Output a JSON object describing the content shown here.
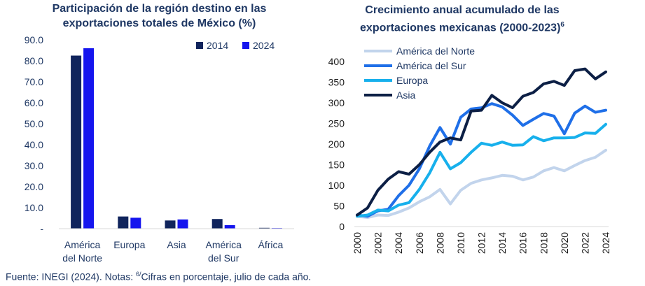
{
  "footer": {
    "prefix": "Fuente: INEGI (2024). Notas: ",
    "sup": "6/",
    "suffix": "Cifras en porcentaje, julio de cada año."
  },
  "colors": {
    "title": "#1f3864",
    "axis_text": "#1f3864",
    "s2014": "#10245c",
    "s2024": "#1515ee",
    "norte": "#c2d4ec",
    "sur": "#1f6fe8",
    "europa": "#17b0ec",
    "asia": "#0c1f45"
  },
  "chart_data": [
    {
      "type": "bar",
      "title_line1": "Participación de la región destino en las",
      "title_line2": "exportaciones totales de México (%)",
      "categories": [
        [
          "América",
          "del Norte"
        ],
        [
          "Europa"
        ],
        [
          "Asia"
        ],
        [
          "América",
          "del Sur"
        ],
        [
          "África"
        ]
      ],
      "series": [
        {
          "name": "2014",
          "values": [
            82.5,
            5.8,
            3.9,
            4.6,
            0.4
          ]
        },
        {
          "name": "2024",
          "values": [
            86.0,
            5.2,
            4.4,
            1.7,
            0.3
          ]
        }
      ],
      "ylim": [
        0,
        90
      ],
      "yticks": [
        "-",
        "10.0",
        "20.0",
        "30.0",
        "40.0",
        "50.0",
        "60.0",
        "70.0",
        "80.0",
        "90.0"
      ],
      "legend": "top-right",
      "grid": false
    },
    {
      "type": "line",
      "title_line1": "Crecimiento anual acumulado de las",
      "title_line2": "exportaciones mexicanas (2000-2023)",
      "title_sup": "6",
      "x": [
        2000,
        2001,
        2002,
        2003,
        2004,
        2005,
        2006,
        2007,
        2008,
        2009,
        2010,
        2011,
        2012,
        2013,
        2014,
        2015,
        2016,
        2017,
        2018,
        2019,
        2020,
        2021,
        2022,
        2023,
        2024
      ],
      "xticks": [
        "2000",
        "2002",
        "2004",
        "2006",
        "2008",
        "2010",
        "2012",
        "2014",
        "2016",
        "2018",
        "2020",
        "2022",
        "2024"
      ],
      "yticks": [
        "0",
        "50",
        "100",
        "150",
        "200",
        "250",
        "300",
        "350",
        "400"
      ],
      "ylim": [
        0,
        400
      ],
      "legend": "top-left",
      "grid": false,
      "series": [
        {
          "name": "América del Norte",
          "values": [
            25,
            22,
            28,
            27,
            35,
            45,
            60,
            72,
            90,
            55,
            88,
            105,
            113,
            118,
            124,
            122,
            113,
            120,
            135,
            143,
            135,
            148,
            160,
            168,
            185
          ]
        },
        {
          "name": "América del Sur",
          "values": [
            28,
            25,
            38,
            42,
            75,
            100,
            140,
            195,
            240,
            200,
            265,
            285,
            288,
            298,
            290,
            270,
            245,
            260,
            274,
            268,
            225,
            275,
            292,
            277,
            282
          ]
        },
        {
          "name": "Europa",
          "values": [
            25,
            28,
            40,
            38,
            52,
            58,
            90,
            130,
            180,
            140,
            155,
            180,
            202,
            197,
            205,
            197,
            198,
            218,
            208,
            215,
            215,
            216,
            227,
            226,
            248
          ]
        },
        {
          "name": "Asia",
          "values": [
            28,
            45,
            88,
            115,
            133,
            127,
            150,
            180,
            205,
            215,
            210,
            280,
            282,
            318,
            300,
            288,
            316,
            325,
            346,
            352,
            342,
            378,
            382,
            358,
            375
          ]
        }
      ]
    }
  ]
}
